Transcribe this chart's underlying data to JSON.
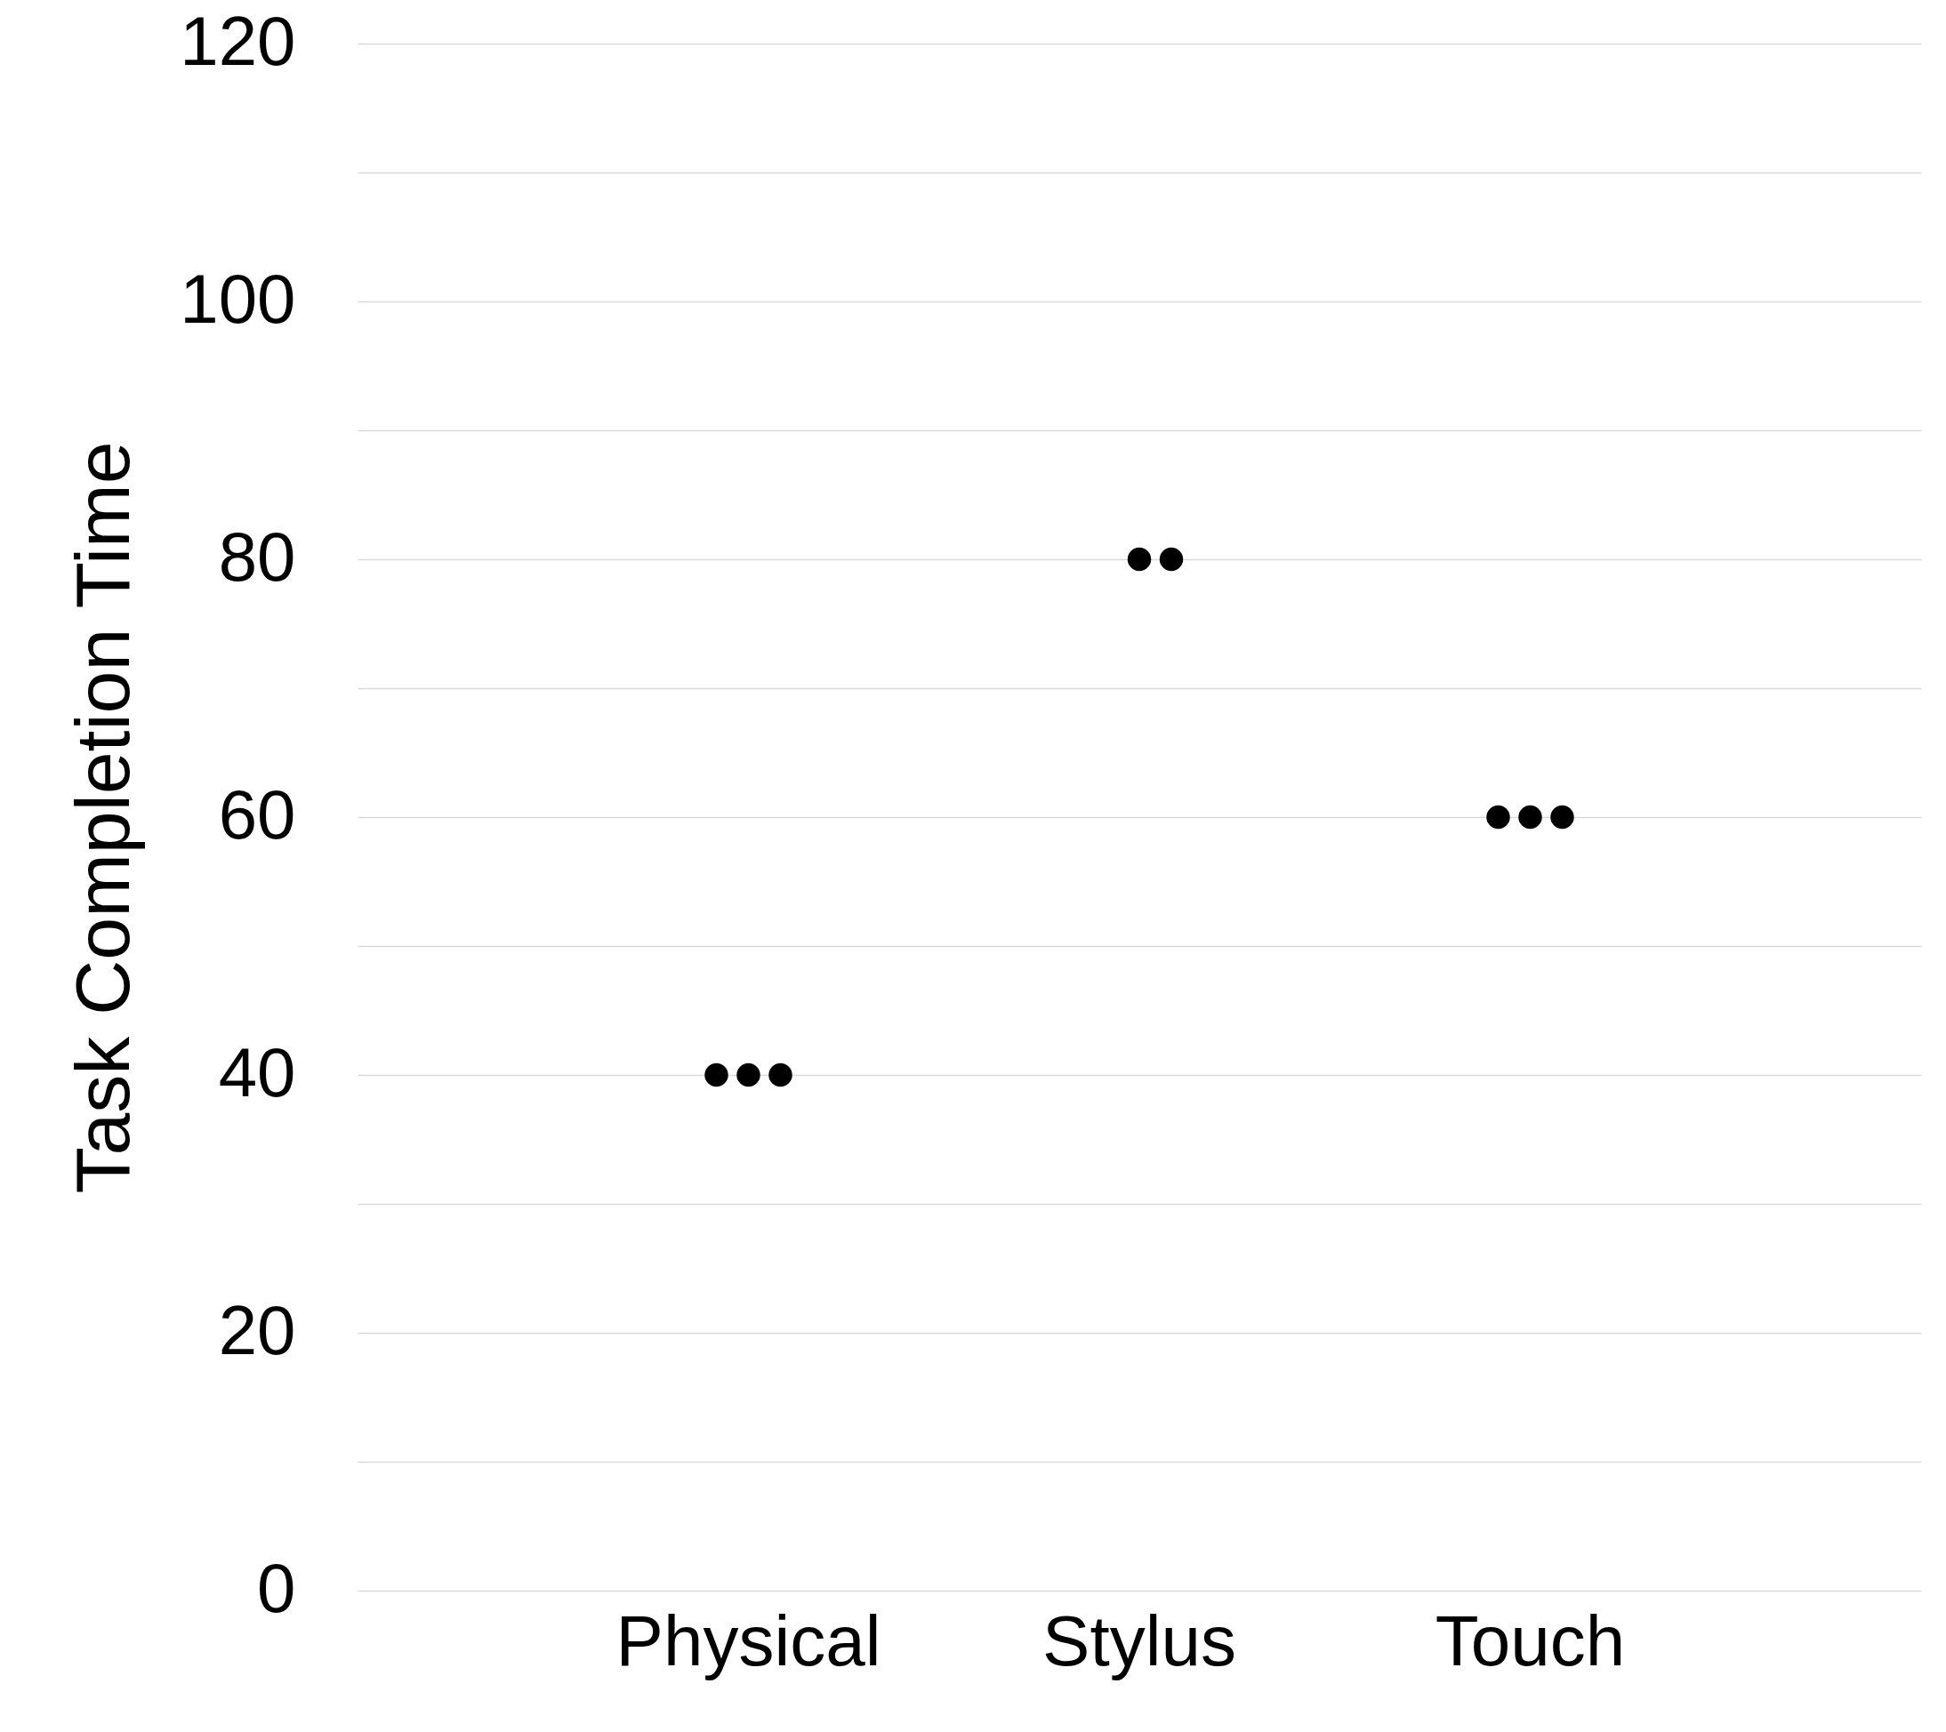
{
  "chart_data": {
    "type": "scatter",
    "ylabel": "Task Completion Time",
    "categories": [
      "Physical",
      "Stylus",
      "Touch"
    ],
    "series": [
      {
        "color": "#000000",
        "x": [
          "Physical",
          "Physical",
          "Physical",
          "Stylus",
          "Stylus",
          "Touch",
          "Touch",
          "Touch"
        ],
        "values": [
          40,
          40,
          40,
          80,
          80,
          60,
          60,
          60
        ]
      }
    ],
    "ylim": [
      0,
      120
    ],
    "yticks": [
      0,
      {
        "value": 10,
        "label": null
      },
      20,
      {
        "value": 30,
        "label": null
      },
      40,
      {
        "value": 50,
        "label": null
      },
      60,
      {
        "value": 70,
        "label": null
      },
      80,
      {
        "value": 90,
        "label": null
      },
      100,
      {
        "value": 110,
        "label": null
      },
      120
    ],
    "grid": "y",
    "marker": "circle"
  }
}
